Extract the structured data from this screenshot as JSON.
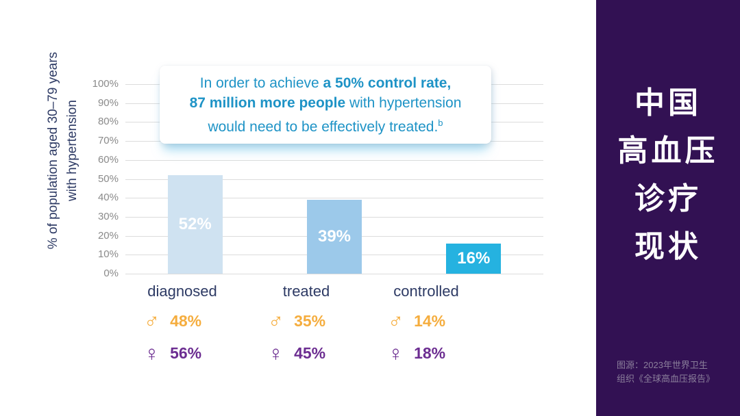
{
  "sidebar": {
    "bg": "#321153",
    "title_lines": [
      "中国",
      "高血压",
      "诊疗",
      "现状"
    ],
    "source": "图源：2023年世界卫生\n组织《全球高血压报告》"
  },
  "callout": {
    "text_color": "#1e93c6",
    "l1a": "In order to achieve ",
    "l1b": "a 50% control rate,",
    "l2a": "87 million more people",
    "l2b": " with hypertension",
    "l3a": "would need to be effectively treated.",
    "l3sup": "b"
  },
  "chart_data": {
    "type": "bar",
    "title": "",
    "ylabel": "% of population aged 30–79 years with hypertension",
    "ylabel_line1": "% of population aged 30–79 years",
    "ylabel_line2": "with hypertension",
    "ylim": [
      0,
      100
    ],
    "ytick_step": 10,
    "yticks": [
      "100%",
      "90%",
      "80%",
      "70%",
      "60%",
      "50%",
      "40%",
      "30%",
      "20%",
      "10%",
      "0%"
    ],
    "grid": true,
    "categories": [
      "diagnosed",
      "treated",
      "controlled"
    ],
    "values": [
      52,
      39,
      16
    ],
    "value_labels": [
      "52%",
      "39%",
      "16%"
    ],
    "bar_colors": [
      "#cfe2f1",
      "#9cc9ea",
      "#25b2e0"
    ],
    "series": [
      {
        "name": "male",
        "symbol": "♂",
        "color": "#f5ad3e",
        "values": [
          48,
          35,
          14
        ],
        "labels": [
          "48%",
          "35%",
          "14%"
        ]
      },
      {
        "name": "female",
        "symbol": "♀",
        "color": "#6c2d91",
        "values": [
          56,
          45,
          18
        ],
        "labels": [
          "56%",
          "45%",
          "18%"
        ]
      }
    ],
    "tick_color": "#8a8a8a",
    "grid_color": "#dcdcdc",
    "category_label_color": "#2d3a64",
    "bar_label_color": "#ffffff"
  }
}
